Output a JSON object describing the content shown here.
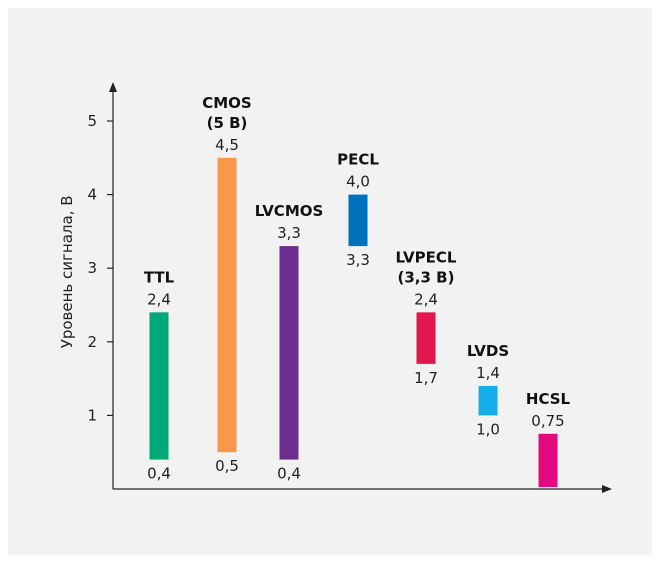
{
  "chart_data": {
    "type": "bar",
    "ylabel": "Уровень сигнала, В",
    "xlabel": "",
    "ylim": [
      0,
      5.5
    ],
    "yticks": [
      1,
      2,
      3,
      4,
      5
    ],
    "grid": false,
    "bars": [
      {
        "label": [
          "TTL"
        ],
        "low": 0.4,
        "high": 2.4,
        "low_label": "0,4",
        "high_label": "2,4",
        "color": "#00a878"
      },
      {
        "label": [
          "CMOS",
          "(5 В)"
        ],
        "low": 0.5,
        "high": 4.5,
        "low_label": "0,5",
        "high_label": "4,5",
        "color": "#f7984a"
      },
      {
        "label": [
          "LVCMOS"
        ],
        "low": 0.4,
        "high": 3.3,
        "low_label": "0,4",
        "high_label": "3,3",
        "color": "#6b2d8f"
      },
      {
        "label": [
          "PECL"
        ],
        "low": 3.3,
        "high": 4.0,
        "low_label": "3,3",
        "high_label": "4,0",
        "color": "#0071bc"
      },
      {
        "label": [
          "LVPECL",
          "(3,3 В)"
        ],
        "low": 1.7,
        "high": 2.4,
        "low_label": "1,7",
        "high_label": "2,4",
        "color": "#e3174d"
      },
      {
        "label": [
          "LVDS"
        ],
        "low": 1.0,
        "high": 1.4,
        "low_label": "1,0",
        "high_label": "1,4",
        "color": "#15aee9"
      },
      {
        "label": [
          "HCSL"
        ],
        "low": 0.0,
        "high": 0.75,
        "low_label": "",
        "high_label": "0,75",
        "color": "#e5097f"
      }
    ]
  }
}
